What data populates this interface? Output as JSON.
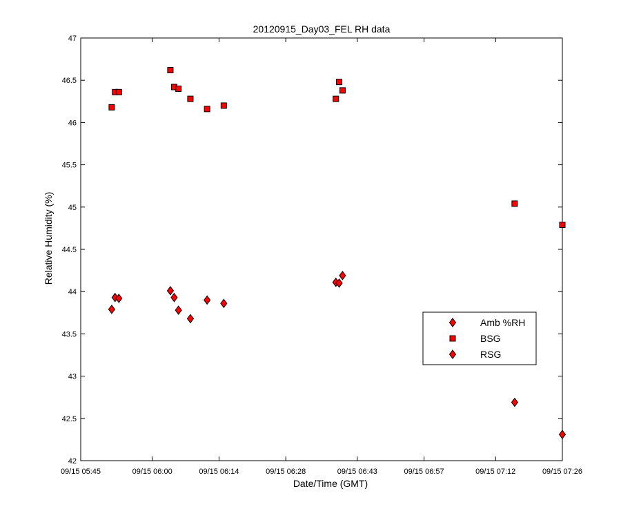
{
  "chart_data": {
    "type": "scatter",
    "title": "20120915_Day03_FEL RH data",
    "xlabel": "Date/Time (GMT)",
    "ylabel": "Relative Humidity (%)",
    "ylim": [
      42,
      47
    ],
    "xlim_minutes": [
      0,
      101
    ],
    "x_ticks": [
      {
        "minute": 0,
        "label": "09/15 05:45"
      },
      {
        "minute": 15,
        "label": "09/15 06:00"
      },
      {
        "minute": 29,
        "label": "09/15 06:14"
      },
      {
        "minute": 43,
        "label": "09/15 06:28"
      },
      {
        "minute": 58,
        "label": "09/15 06:43"
      },
      {
        "minute": 72,
        "label": "09/15 06:57"
      },
      {
        "minute": 87,
        "label": "09/15 07:12"
      },
      {
        "minute": 101,
        "label": "09/15 07:26"
      }
    ],
    "y_ticks": [
      "42",
      "42.5",
      "43",
      "43.5",
      "44",
      "44.5",
      "45",
      "45.5",
      "46",
      "46.5",
      "47"
    ],
    "grid": false,
    "legend_position": "lower-right",
    "series": [
      {
        "name": "Amb %RH",
        "marker": "diamond",
        "color": "#ff0000",
        "x": [],
        "y": []
      },
      {
        "name": "BSG",
        "marker": "square",
        "color": "#ff0000",
        "x": [
          6.5,
          7.2,
          8.0,
          18.8,
          19.6,
          20.5,
          23.0,
          26.5,
          30.0,
          53.5,
          54.2,
          54.9,
          91.0,
          101.0
        ],
        "y": [
          46.18,
          46.36,
          46.36,
          46.62,
          46.42,
          46.4,
          46.28,
          46.16,
          46.2,
          46.28,
          46.48,
          46.38,
          45.04,
          44.79
        ]
      },
      {
        "name": "RSG",
        "marker": "diamond",
        "color": "#ff0000",
        "x": [
          6.5,
          7.2,
          8.0,
          18.8,
          19.6,
          20.5,
          23.0,
          26.5,
          30.0,
          53.5,
          54.2,
          54.9,
          91.0,
          101.0
        ],
        "y": [
          43.79,
          43.93,
          43.92,
          44.01,
          43.93,
          43.78,
          43.68,
          43.9,
          43.86,
          44.11,
          44.1,
          44.19,
          42.69,
          42.31
        ]
      }
    ]
  }
}
